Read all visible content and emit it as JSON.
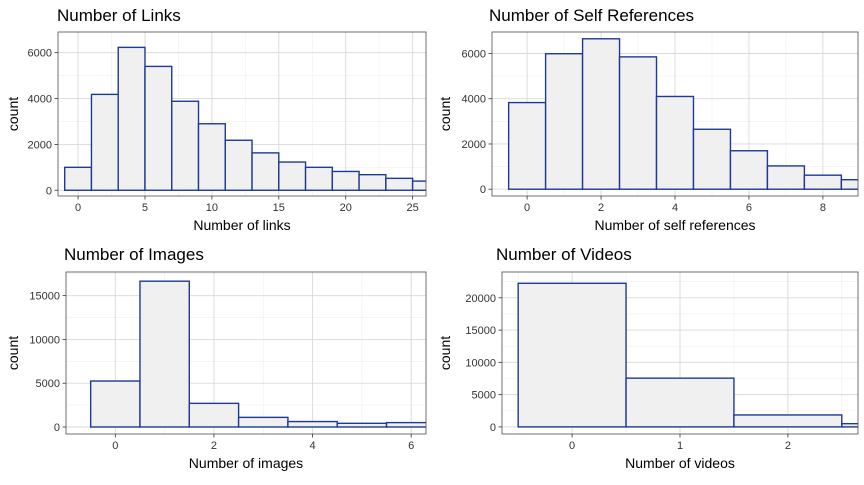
{
  "chart_data": [
    {
      "type": "bar",
      "title": "Number of Links",
      "xlabel": "Number of links",
      "ylabel": "count",
      "bin_width": 2,
      "x": [
        0,
        2,
        4,
        6,
        8,
        10,
        12,
        14,
        16,
        18,
        20,
        22,
        24,
        26
      ],
      "values": [
        1000,
        4180,
        6230,
        5400,
        3880,
        2900,
        2180,
        1630,
        1230,
        1000,
        820,
        680,
        520,
        400
      ],
      "xlim": [
        -1.5,
        26
      ],
      "ylim": [
        -250,
        6900
      ],
      "xticks": [
        0,
        5,
        10,
        15,
        20,
        25
      ],
      "yticks": [
        0,
        2000,
        4000,
        6000
      ],
      "grid": true,
      "fill_color": "#f0f0f0",
      "edge_color": "#1f3a93"
    },
    {
      "type": "bar",
      "title": "Number of Self References",
      "xlabel": "Number of self references",
      "ylabel": "count",
      "bin_width": 1,
      "x": [
        0,
        1,
        2,
        3,
        4,
        5,
        6,
        7,
        8,
        9
      ],
      "values": [
        3830,
        5990,
        6650,
        5850,
        4100,
        2650,
        1700,
        1030,
        620,
        420
      ],
      "xlim": [
        -0.95,
        8.95
      ],
      "ylim": [
        -300,
        6950
      ],
      "xticks": [
        0,
        2,
        4,
        6,
        8
      ],
      "yticks": [
        0,
        2000,
        4000,
        6000
      ],
      "grid": true,
      "fill_color": "#f0f0f0",
      "edge_color": "#1f3a93"
    },
    {
      "type": "bar",
      "title": "Number of Images",
      "xlabel": "Number of images",
      "ylabel": "count",
      "bin_width": 1,
      "x": [
        0,
        1,
        2,
        3,
        4,
        5,
        6
      ],
      "values": [
        5250,
        16650,
        2700,
        1100,
        620,
        420,
        500
      ],
      "xlim": [
        -1,
        6.3
      ],
      "ylim": [
        -800,
        17700
      ],
      "xticks": [
        0,
        2,
        4,
        6
      ],
      "yticks": [
        0,
        5000,
        10000,
        15000
      ],
      "grid": true,
      "fill_color": "#f0f0f0",
      "edge_color": "#1f3a93"
    },
    {
      "type": "bar",
      "title": "Number of Videos",
      "xlabel": "Number of videos",
      "ylabel": "count",
      "bin_width": 1,
      "x": [
        0,
        1,
        2,
        3
      ],
      "values": [
        22250,
        7550,
        1850,
        500
      ],
      "xlim": [
        -0.65,
        2.65
      ],
      "ylim": [
        -1100,
        24000
      ],
      "xticks": [
        0,
        1,
        2
      ],
      "yticks": [
        0,
        5000,
        10000,
        15000,
        20000
      ],
      "grid": true,
      "fill_color": "#f0f0f0",
      "edge_color": "#1f3a93"
    }
  ]
}
